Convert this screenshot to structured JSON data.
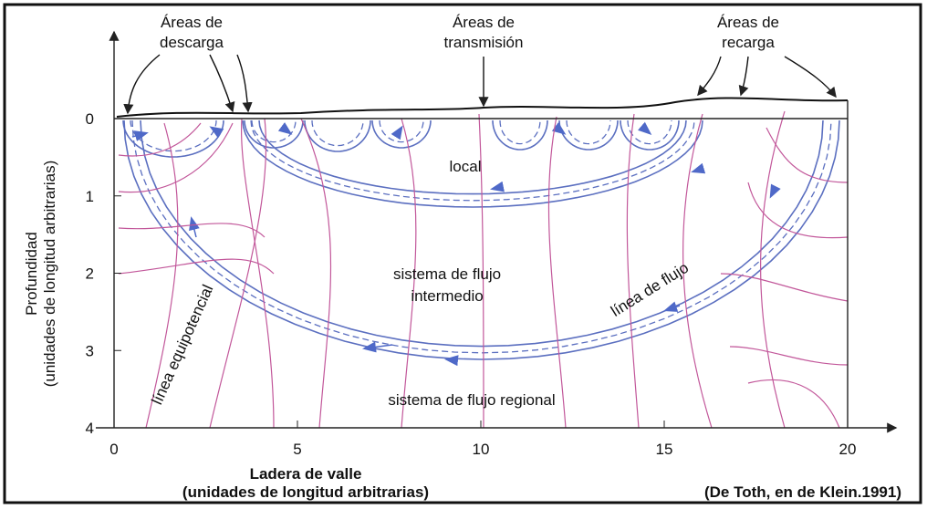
{
  "header": {
    "labels": [
      [
        "Áreas de",
        "descarga"
      ],
      [
        "Áreas de",
        "transmisión"
      ],
      [
        "Áreas de",
        "recarga"
      ]
    ]
  },
  "axes": {
    "y_label": [
      "Profundidad",
      "(unidades de longitud arbitrarias)"
    ],
    "x_label": [
      "Ladera de valle",
      "(unidades de longitud arbitrarias)"
    ],
    "x_ticks": [
      "0",
      "5",
      "10",
      "15",
      "20"
    ],
    "y_ticks": [
      "0",
      "1",
      "2",
      "3",
      "4"
    ]
  },
  "regions": {
    "local": "local",
    "intermediate": [
      "sistema de flujo",
      "intermedio"
    ],
    "regional": "sistema de flujo regional"
  },
  "annotations": {
    "flow_line": "línea de flujo",
    "equipotential": "línea equipotencial"
  },
  "source": "(De Toth, en de Klein.1991)"
}
